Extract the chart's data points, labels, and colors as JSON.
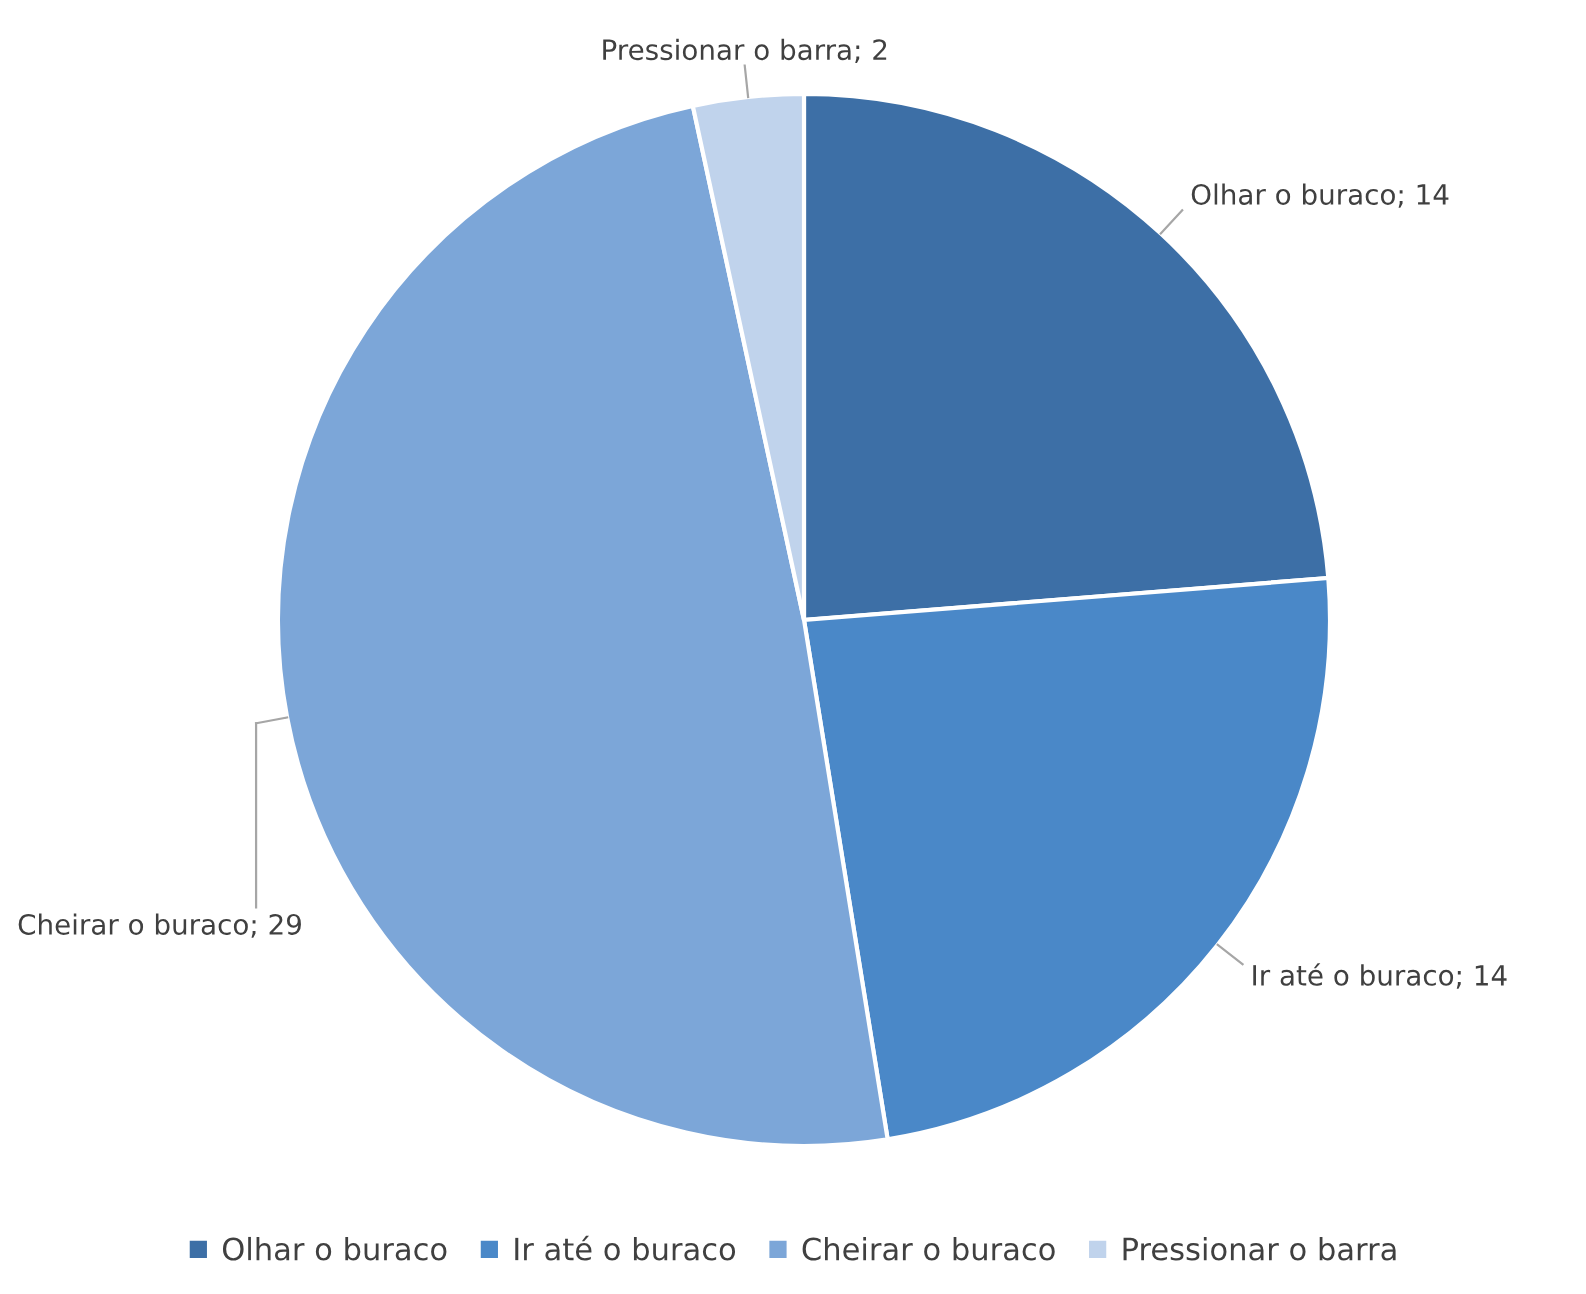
{
  "chart_data": {
    "type": "pie",
    "categories": [
      "Olhar o buraco",
      "Ir até o buraco",
      "Cheirar o buraco",
      "Pressionar o barra"
    ],
    "values": [
      14,
      14,
      29,
      2
    ],
    "colors": [
      "#3d6fa6",
      "#4a88c8",
      "#7ca6d8",
      "#c0d3ec"
    ],
    "value_labels": [
      "Olhar o buraco; 14",
      "Ir até o buraco; 14",
      "Cheirar o buraco; 29",
      "Pressionar o barra; 2"
    ],
    "legend": "bottom"
  }
}
